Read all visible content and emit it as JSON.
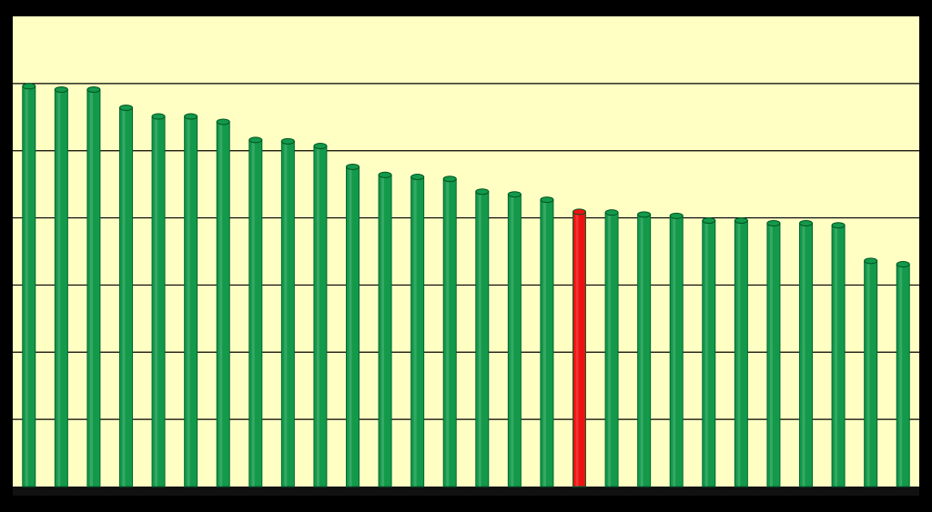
{
  "chart_data": {
    "type": "bar",
    "categories": [
      null,
      null,
      null,
      null,
      null,
      null,
      null,
      null,
      null,
      null,
      null,
      null,
      null,
      null,
      null,
      null,
      null,
      null,
      null,
      null,
      null,
      null,
      null,
      null,
      null,
      null,
      null,
      null
    ],
    "values": [
      5.96,
      5.91,
      5.91,
      5.64,
      5.51,
      5.51,
      5.43,
      5.16,
      5.14,
      5.07,
      4.76,
      4.64,
      4.61,
      4.58,
      4.39,
      4.35,
      4.27,
      4.09,
      4.08,
      4.05,
      4.03,
      3.96,
      3.96,
      3.92,
      3.92,
      3.89,
      3.36,
      3.31
    ],
    "colors": [
      "#13994a",
      "#13994a",
      "#13994a",
      "#13994a",
      "#13994a",
      "#13994a",
      "#13994a",
      "#13994a",
      "#13994a",
      "#13994a",
      "#13994a",
      "#13994a",
      "#13994a",
      "#13994a",
      "#13994a",
      "#13994a",
      "#13994a",
      "#ee1111",
      "#13994a",
      "#13994a",
      "#13994a",
      "#13994a",
      "#13994a",
      "#13994a",
      "#13994a",
      "#13994a",
      "#13994a",
      "#13994a"
    ],
    "ylim": [
      0,
      7
    ],
    "yticks": [
      1,
      2,
      3,
      4,
      5,
      6
    ],
    "grid": true
  }
}
